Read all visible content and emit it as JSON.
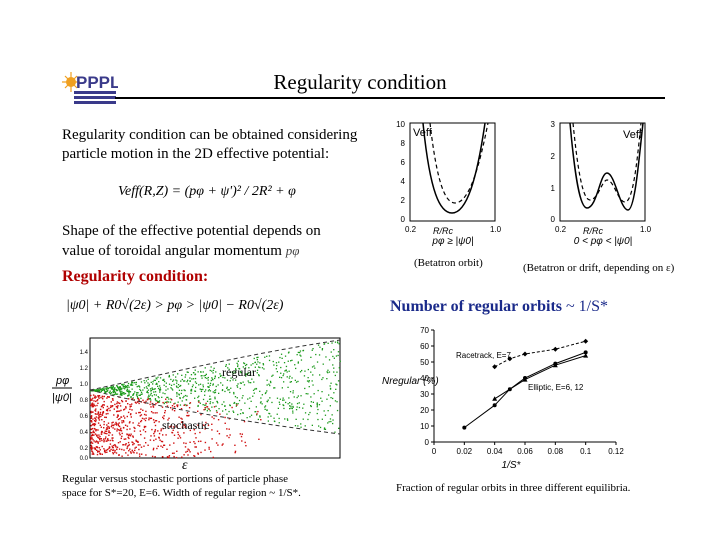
{
  "slide": {
    "title": "Regularity condition",
    "intro_line1": "Regularity condition can be obtained considering",
    "intro_line2": "particle motion in the 2D effective potential:",
    "veff_formula": "Veff(R,Z) = (pφ + ψ')² / 2R² + φ",
    "shape_line1": "Shape of the effective potential depends on",
    "shape_line2": "value of toroidal angular momentum",
    "shape_symbol": "pφ",
    "regularity_heading": "Regularity condition:",
    "regularity_formula": "|ψ0| + R0√(2ε) > pφ > |ψ0| − R0√(2ε)",
    "number_heading_prefix": "Number of regular orbits",
    "number_heading_suffix": "~ 1/S*"
  },
  "potential_plots": {
    "left": {
      "ylabel": "Veff",
      "xlabel": "R/Rc",
      "yticks": [
        "10",
        "8",
        "6",
        "4",
        "2",
        "0"
      ],
      "xticks": [
        "0.2",
        "1.0"
      ],
      "condition": "pφ ≥ |ψ0|",
      "caption": "(Betatron orbit)"
    },
    "right": {
      "ylabel": "Veff",
      "xlabel": "R/Rc",
      "yticks": [
        "3",
        "2",
        "1",
        "0"
      ],
      "xticks": [
        "0.2",
        "1.0"
      ],
      "condition": "0 < pφ < |ψ0|",
      "caption": "(Betatron or drift, depending on ε)"
    }
  },
  "scatter_plot": {
    "ylabel_top": "pφ",
    "ylabel_bottom": "|ψ0|",
    "xlabel": "ε",
    "yticks": [
      "1.4",
      "1.2",
      "1.0",
      "0.8",
      "0.6",
      "0.4",
      "0.2",
      "0.0"
    ],
    "regular_label": "regular",
    "stochastic_label": "stochastic",
    "colors": {
      "regular": "#1a9a1a",
      "stochastic": "#d01010"
    },
    "caption_line1": "Regular versus stochastic portions of particle phase",
    "caption_line2": "space for S*=20, E=6. Width of regular region ~ 1/S*."
  },
  "chart_data": {
    "type": "line",
    "title": "",
    "xlabel": "1/S*",
    "ylabel": "Nregular (%)",
    "xlim": [
      0,
      0.12
    ],
    "ylim": [
      0,
      70
    ],
    "xticks": [
      "0",
      "0.02",
      "0.04",
      "0.06",
      "0.08",
      "0.1",
      "0.12"
    ],
    "yticks": [
      "0",
      "10",
      "20",
      "30",
      "40",
      "50",
      "60",
      "70"
    ],
    "series": [
      {
        "name": "Racetrack, E=7",
        "style": "dashed",
        "x": [
          0.04,
          0.05,
          0.06,
          0.08,
          0.1
        ],
        "y": [
          47,
          52,
          55,
          58,
          63
        ]
      },
      {
        "name": "Elliptic, E=6",
        "style": "solid",
        "x": [
          0.02,
          0.04,
          0.05,
          0.06,
          0.08,
          0.1
        ],
        "y": [
          9,
          23,
          33,
          40,
          49,
          56
        ]
      },
      {
        "name": "Elliptic, E=12",
        "style": "solid",
        "x": [
          0.04,
          0.06,
          0.08,
          0.1
        ],
        "y": [
          27,
          39,
          48,
          54
        ]
      }
    ],
    "annotations": [
      "Racetrack, E=7",
      "Elliptic, E=6, 12"
    ],
    "caption": "Fraction of regular orbits in three different equilibria."
  }
}
